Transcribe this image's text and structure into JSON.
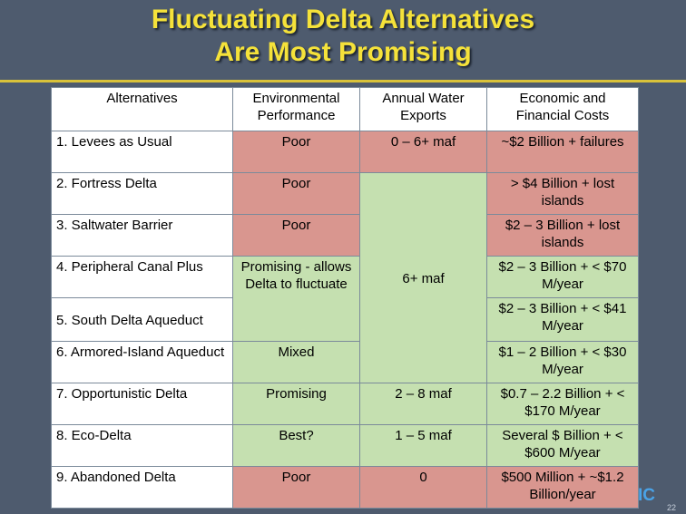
{
  "slide": {
    "title_line1": "Fluctuating Delta Alternatives",
    "title_line2": "Are Most Promising",
    "logo_text": "IC",
    "page_number": "22"
  },
  "table": {
    "headers": {
      "alternatives": "Alternatives",
      "environmental": "Environmental Performance",
      "exports": "Annual Water Exports",
      "costs": "Economic and Financial Costs"
    },
    "rows": [
      {
        "name": "1. Levees as Usual",
        "env": "Poor",
        "exports": "0 – 6+  maf",
        "cost": "~$2 Billion + failures"
      },
      {
        "name": "2. Fortress Delta",
        "env": "Poor",
        "cost": "> $4 Billion + lost islands"
      },
      {
        "name": "3. Saltwater Barrier",
        "env": "Poor",
        "cost": "$2 – 3 Billion + lost islands"
      },
      {
        "name": "4. Peripheral Canal Plus",
        "cost": "$2 – 3 Billion + < $70 M/year"
      },
      {
        "name": "5. South Delta Aqueduct",
        "cost": "$2 – 3 Billion + < $41 M/year"
      },
      {
        "name": "6. Armored-Island Aqueduct",
        "env": "Mixed",
        "cost": "$1 – 2 Billion + < $30 M/year"
      },
      {
        "name": "7. Opportunistic Delta",
        "env": "Promising",
        "exports": "2 – 8 maf",
        "cost": "$0.7 – 2.2 Billion + < $170 M/year"
      },
      {
        "name": "8. Eco-Delta",
        "env": "Best?",
        "exports": "1 – 5 maf",
        "cost": "Several $ Billion + < $600 M/year"
      },
      {
        "name": "9. Abandoned Delta",
        "env": "Poor",
        "exports": "0",
        "cost": "$500 Million + ~$1.2 Billion/year"
      }
    ],
    "merged_env_4_5": "Promising - allows Delta to fluctuate",
    "merged_exports_2_6": "6+ maf"
  },
  "colors": {
    "background": "#4e5b6e",
    "title": "#f5e23a",
    "poor_cell": "#d9968f",
    "good_cell": "#c5e0b0"
  }
}
